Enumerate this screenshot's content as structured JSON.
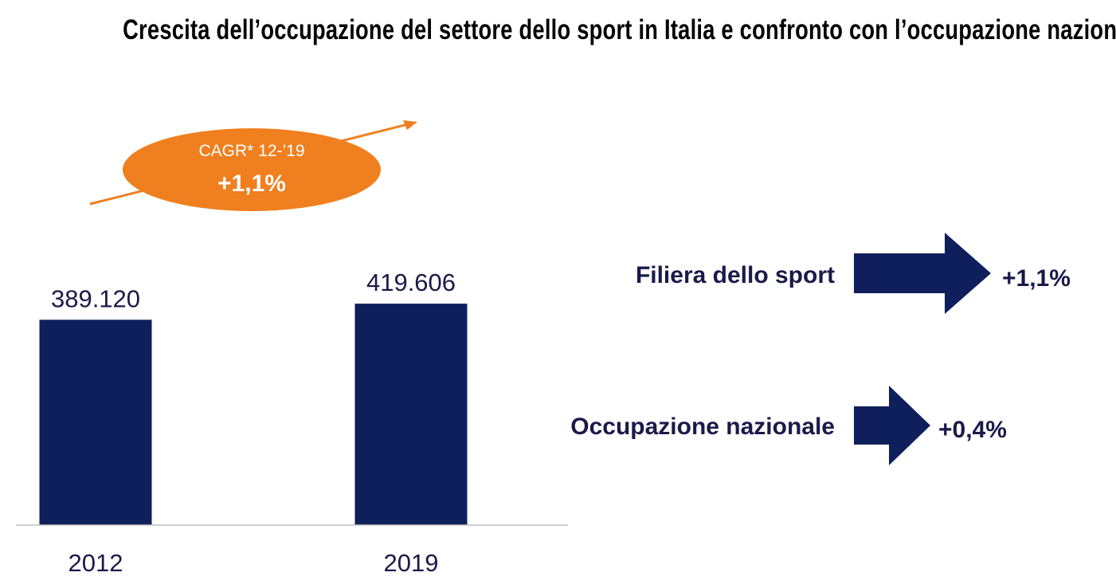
{
  "page": {
    "title": "Crescita dell’occupazione del settore dello sport in Italia e confronto con l’occupazione nazionale"
  },
  "colors": {
    "bar": "#0f1f5c",
    "accent": "#f07f1f",
    "text": "#1a1a4a",
    "axis": "#bfbfbf"
  },
  "chart_data": {
    "type": "bar",
    "categories": [
      "2012",
      "2019"
    ],
    "values": [
      389120,
      419606
    ],
    "value_labels": [
      "389.120",
      "419.606"
    ],
    "ylim": [
      0,
      450000
    ],
    "grid": false,
    "badge": {
      "label": "CAGR* 12-’19",
      "value": "+1,1%"
    },
    "comparison": [
      {
        "label": "Filiera dello sport",
        "value": "+1,1%",
        "growth": 1.1
      },
      {
        "label": "Occupazione nazionale",
        "value": "+0,4%",
        "growth": 0.4
      }
    ]
  }
}
